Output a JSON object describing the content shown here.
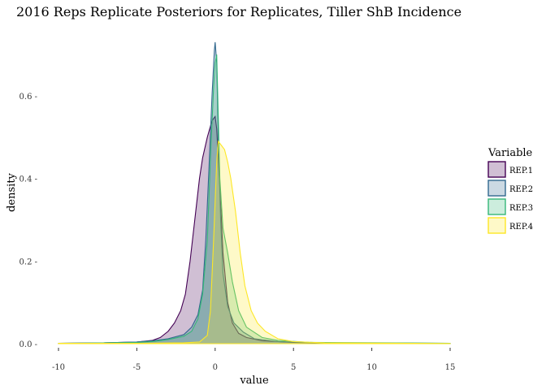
{
  "chart_data": {
    "type": "area",
    "title": "2016 Reps Replicate Posteriors for Replicates, Tiller ShB Incidence",
    "xlabel": "value",
    "ylabel": "density",
    "xlim": [
      -10,
      15
    ],
    "ylim": [
      0,
      0.75
    ],
    "x_ticks": [
      -10,
      -5,
      0,
      5,
      10,
      15
    ],
    "x_tick_labels": [
      "-10",
      "-5",
      "0",
      "5",
      "10",
      "15"
    ],
    "y_ticks": [
      0.0,
      0.2,
      0.4,
      0.6
    ],
    "y_tick_labels": [
      "0.0 -",
      "0.2 -",
      "0.4 -",
      "0.6 -"
    ],
    "grid": false,
    "legend_title": "Variable",
    "legend_position": "right",
    "series": [
      {
        "name": "REP.1",
        "color": "#440154",
        "points": [
          [
            -10,
            0.001
          ],
          [
            -7,
            0.002
          ],
          [
            -5,
            0.004
          ],
          [
            -4,
            0.008
          ],
          [
            -3.5,
            0.015
          ],
          [
            -3,
            0.03
          ],
          [
            -2.6,
            0.05
          ],
          [
            -2.2,
            0.08
          ],
          [
            -1.9,
            0.12
          ],
          [
            -1.6,
            0.2
          ],
          [
            -1.3,
            0.3
          ],
          [
            -1.0,
            0.4
          ],
          [
            -0.8,
            0.45
          ],
          [
            -0.5,
            0.5
          ],
          [
            -0.2,
            0.54
          ],
          [
            0,
            0.55
          ],
          [
            0.1,
            0.52
          ],
          [
            0.3,
            0.38
          ],
          [
            0.5,
            0.22
          ],
          [
            0.8,
            0.1
          ],
          [
            1.1,
            0.05
          ],
          [
            1.5,
            0.025
          ],
          [
            2,
            0.015
          ],
          [
            3,
            0.007
          ],
          [
            5,
            0.003
          ],
          [
            8,
            0.001
          ],
          [
            15,
            0.0005
          ]
        ]
      },
      {
        "name": "REP.2",
        "color": "#31688E",
        "points": [
          [
            -10,
            0.001
          ],
          [
            -7,
            0.002
          ],
          [
            -5,
            0.004
          ],
          [
            -4,
            0.007
          ],
          [
            -3,
            0.012
          ],
          [
            -2,
            0.022
          ],
          [
            -1.5,
            0.04
          ],
          [
            -1.1,
            0.07
          ],
          [
            -0.8,
            0.13
          ],
          [
            -0.6,
            0.25
          ],
          [
            -0.4,
            0.42
          ],
          [
            -0.2,
            0.6
          ],
          [
            -0.05,
            0.71
          ],
          [
            0,
            0.73
          ],
          [
            0.1,
            0.68
          ],
          [
            0.2,
            0.5
          ],
          [
            0.35,
            0.3
          ],
          [
            0.5,
            0.17
          ],
          [
            0.8,
            0.09
          ],
          [
            1.2,
            0.05
          ],
          [
            1.8,
            0.028
          ],
          [
            2.5,
            0.012
          ],
          [
            4,
            0.005
          ],
          [
            7,
            0.002
          ],
          [
            15,
            0.001
          ]
        ]
      },
      {
        "name": "REP.3",
        "color": "#35B779",
        "points": [
          [
            -10,
            0.001
          ],
          [
            -7,
            0.002
          ],
          [
            -5,
            0.003
          ],
          [
            -4,
            0.005
          ],
          [
            -3,
            0.01
          ],
          [
            -2,
            0.018
          ],
          [
            -1.5,
            0.03
          ],
          [
            -1.1,
            0.06
          ],
          [
            -0.8,
            0.12
          ],
          [
            -0.5,
            0.25
          ],
          [
            -0.3,
            0.45
          ],
          [
            -0.1,
            0.62
          ],
          [
            0,
            0.68
          ],
          [
            0.1,
            0.7
          ],
          [
            0.2,
            0.55
          ],
          [
            0.3,
            0.4
          ],
          [
            0.5,
            0.28
          ],
          [
            0.8,
            0.22
          ],
          [
            1.1,
            0.15
          ],
          [
            1.5,
            0.08
          ],
          [
            2,
            0.04
          ],
          [
            3,
            0.015
          ],
          [
            4,
            0.008
          ],
          [
            6,
            0.003
          ],
          [
            15,
            0.001
          ]
        ]
      },
      {
        "name": "REP.4",
        "color": "#FDE725",
        "points": [
          [
            -10,
            0.001
          ],
          [
            -5,
            0.001
          ],
          [
            -2,
            0.002
          ],
          [
            -1,
            0.004
          ],
          [
            -0.5,
            0.02
          ],
          [
            -0.3,
            0.08
          ],
          [
            -0.1,
            0.25
          ],
          [
            0.1,
            0.44
          ],
          [
            0.2,
            0.49
          ],
          [
            0.4,
            0.48
          ],
          [
            0.6,
            0.47
          ],
          [
            0.8,
            0.44
          ],
          [
            1.0,
            0.4
          ],
          [
            1.3,
            0.32
          ],
          [
            1.6,
            0.22
          ],
          [
            1.9,
            0.14
          ],
          [
            2.3,
            0.08
          ],
          [
            2.7,
            0.05
          ],
          [
            3.2,
            0.03
          ],
          [
            4,
            0.012
          ],
          [
            5,
            0.005
          ],
          [
            7,
            0.002
          ],
          [
            15,
            0.0005
          ]
        ]
      }
    ]
  }
}
